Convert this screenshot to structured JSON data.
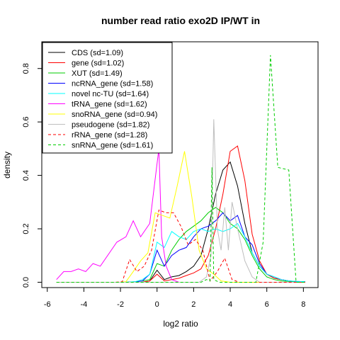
{
  "chart_data": {
    "type": "line",
    "title": "number read ratio exo2D IP/WT in",
    "xlabel": "log2 ratio",
    "ylabel": "density",
    "xlim": [
      -6.3,
      8.8
    ],
    "ylim": [
      -0.02,
      0.9
    ],
    "xticks": [
      -6,
      -4,
      -2,
      0,
      2,
      4,
      6,
      8
    ],
    "yticks": [
      0.0,
      0.2,
      0.4,
      0.6,
      0.8
    ],
    "xtick_labels": [
      "-6",
      "-4",
      "-2",
      "0",
      "2",
      "4",
      "6",
      "8"
    ],
    "ytick_labels": [
      "0.0",
      "0.2",
      "0.4",
      "0.6",
      "0.8"
    ],
    "grid": false,
    "legend_position": "top-left",
    "series": [
      {
        "name": "CDS (sd=1.09)",
        "color": "#000000",
        "dash": "solid",
        "x": [
          -5.5,
          -1.7,
          -1.2,
          -0.8,
          -0.4,
          0.0,
          0.4,
          0.8,
          1.2,
          1.6,
          2.0,
          2.4,
          2.8,
          3.2,
          3.6,
          4.0,
          4.4,
          4.8,
          5.2,
          5.6,
          6.0,
          6.4,
          6.8,
          7.2,
          7.6,
          8.1
        ],
        "y": [
          0,
          0,
          0,
          0,
          0.005,
          0.045,
          0.01,
          0.02,
          0.025,
          0.04,
          0.06,
          0.1,
          0.2,
          0.33,
          0.42,
          0.45,
          0.36,
          0.22,
          0.11,
          0.06,
          0.03,
          0.015,
          0.01,
          0.005,
          0.002,
          0.002
        ]
      },
      {
        "name": "gene (sd=1.02)",
        "color": "#ff0000",
        "dash": "solid",
        "x": [
          -5.5,
          -1.7,
          -1.2,
          -0.8,
          -0.4,
          0.0,
          0.4,
          0.8,
          1.2,
          1.6,
          2.0,
          2.4,
          2.8,
          3.2,
          3.6,
          4.0,
          4.4,
          4.8,
          5.2,
          5.6,
          6.0,
          6.4,
          6.8,
          7.2,
          7.6,
          8.1
        ],
        "y": [
          0,
          0,
          0,
          0,
          0.005,
          0.03,
          0.005,
          0.01,
          0.015,
          0.025,
          0.035,
          0.05,
          0.1,
          0.2,
          0.33,
          0.49,
          0.51,
          0.38,
          0.18,
          0.08,
          0.03,
          0.015,
          0.01,
          0.005,
          0.002,
          0.002
        ]
      },
      {
        "name": "XUT (sd=1.49)",
        "color": "#00cd00",
        "dash": "solid",
        "x": [
          -5.5,
          -1.7,
          -1.2,
          -0.8,
          -0.4,
          0.0,
          0.4,
          0.8,
          1.2,
          1.6,
          2.0,
          2.4,
          2.8,
          3.2,
          3.6,
          4.0,
          4.4,
          4.8,
          5.2,
          5.6,
          6.0,
          6.4,
          6.8,
          7.2,
          7.6,
          8.1
        ],
        "y": [
          0,
          0,
          0.002,
          0.005,
          0.01,
          0.07,
          0.06,
          0.12,
          0.16,
          0.19,
          0.21,
          0.23,
          0.26,
          0.28,
          0.26,
          0.22,
          0.2,
          0.16,
          0.1,
          0.05,
          0.02,
          0.01,
          0.005,
          0.003,
          0.002,
          0.002
        ]
      },
      {
        "name": "ncRNA_gene (sd=1.58)",
        "color": "#0000ff",
        "dash": "solid",
        "x": [
          -5.5,
          -1.7,
          -1.2,
          -0.8,
          -0.4,
          0.0,
          0.4,
          0.8,
          1.2,
          1.6,
          2.0,
          2.4,
          2.8,
          3.2,
          3.6,
          4.0,
          4.4,
          4.8,
          5.2,
          5.6,
          6.0,
          6.4,
          6.8,
          7.2,
          7.6,
          8.1
        ],
        "y": [
          0,
          0,
          0.002,
          0.005,
          0.03,
          0.12,
          0.06,
          0.1,
          0.12,
          0.13,
          0.17,
          0.2,
          0.21,
          0.23,
          0.26,
          0.23,
          0.25,
          0.17,
          0.14,
          0.07,
          0.03,
          0.02,
          0.01,
          0.005,
          0.003,
          0.002
        ]
      },
      {
        "name": "novel nc-TU (sd=1.64)",
        "color": "#00ffff",
        "dash": "solid",
        "x": [
          -5.5,
          -1.7,
          -1.2,
          -0.8,
          -0.4,
          0.0,
          0.4,
          0.8,
          1.2,
          1.6,
          2.0,
          2.4,
          2.8,
          3.2,
          3.6,
          4.0,
          4.4,
          4.8,
          5.2,
          5.6,
          6.0,
          6.4,
          6.8,
          7.2,
          7.6,
          8.1
        ],
        "y": [
          0,
          0,
          0.002,
          0.01,
          0.03,
          0.15,
          0.13,
          0.19,
          0.17,
          0.16,
          0.19,
          0.2,
          0.19,
          0.2,
          0.19,
          0.2,
          0.22,
          0.17,
          0.11,
          0.06,
          0.03,
          0.02,
          0.01,
          0.005,
          0.003,
          0.002
        ]
      },
      {
        "name": "tRNA_gene (sd=1.62)",
        "color": "#ff00ff",
        "dash": "solid",
        "x": [
          -5.5,
          -5.1,
          -4.7,
          -4.3,
          -3.9,
          -3.5,
          -3.1,
          -2.2,
          -1.7,
          -1.3,
          -0.9,
          -0.4,
          0.1,
          0.25,
          0.5,
          0.8,
          1.2
        ],
        "y": [
          0.01,
          0.04,
          0.04,
          0.05,
          0.04,
          0.07,
          0.06,
          0.15,
          0.17,
          0.23,
          0.17,
          0.22,
          0.5,
          0.17,
          0.06,
          0.01,
          0.0
        ]
      },
      {
        "name": "snoRNA_gene (sd=0.94)",
        "color": "#ffff00",
        "dash": "solid",
        "x": [
          -5.5,
          -2.1,
          -1.7,
          -1.3,
          -0.9,
          -0.5,
          -0.1,
          0.3,
          0.7,
          1.1,
          1.5,
          1.9,
          2.3,
          2.7,
          3.1,
          3.5,
          4.0,
          8.1
        ],
        "y": [
          0,
          0,
          0.002,
          0.04,
          0.08,
          0.11,
          0.26,
          0.25,
          0.24,
          0.36,
          0.49,
          0.32,
          0.12,
          0.05,
          0.03,
          0.005,
          0,
          0
        ]
      },
      {
        "name": "pseudogene (sd=1.82)",
        "color": "#bebebe",
        "dash": "solid",
        "x": [
          -5.5,
          2.3,
          2.7,
          2.95,
          3.1,
          3.3,
          3.5,
          3.7,
          3.9,
          4.1,
          4.4,
          4.8,
          5.2,
          5.6,
          8.1
        ],
        "y": [
          0,
          0,
          0.02,
          0.1,
          0.61,
          0.2,
          0.12,
          0.28,
          0.12,
          0.3,
          0.2,
          0.08,
          0.02,
          0,
          0
        ]
      },
      {
        "name": "rRNA_gene (sd=1.28)",
        "color": "#ff0000",
        "dash": "dashed",
        "x": [
          -5.5,
          -2.3,
          -1.9,
          -1.5,
          -1.1,
          -0.7,
          -0.3,
          0.1,
          0.5,
          0.9,
          1.3,
          1.7,
          2.1,
          2.5,
          2.9,
          3.3,
          3.7,
          4.1,
          4.5,
          8.1
        ],
        "y": [
          0,
          0,
          0.002,
          0.085,
          0.04,
          0.06,
          0.12,
          0.27,
          0.26,
          0.26,
          0.21,
          0.14,
          0.16,
          0.12,
          0.005,
          0.04,
          0.09,
          0.01,
          0,
          0
        ]
      },
      {
        "name": "snRNA_gene (sd=1.61)",
        "color": "#00cd00",
        "dash": "dashed",
        "x": [
          -5.5,
          2.4,
          2.7,
          2.9,
          3.0,
          3.1,
          3.4,
          5.4,
          5.8,
          6.2,
          6.6,
          7.2,
          7.6,
          8.1
        ],
        "y": [
          0,
          0,
          0.01,
          0.005,
          0.43,
          0.01,
          0,
          0,
          0.15,
          0.85,
          0.43,
          0.42,
          0.0,
          0
        ]
      }
    ]
  }
}
